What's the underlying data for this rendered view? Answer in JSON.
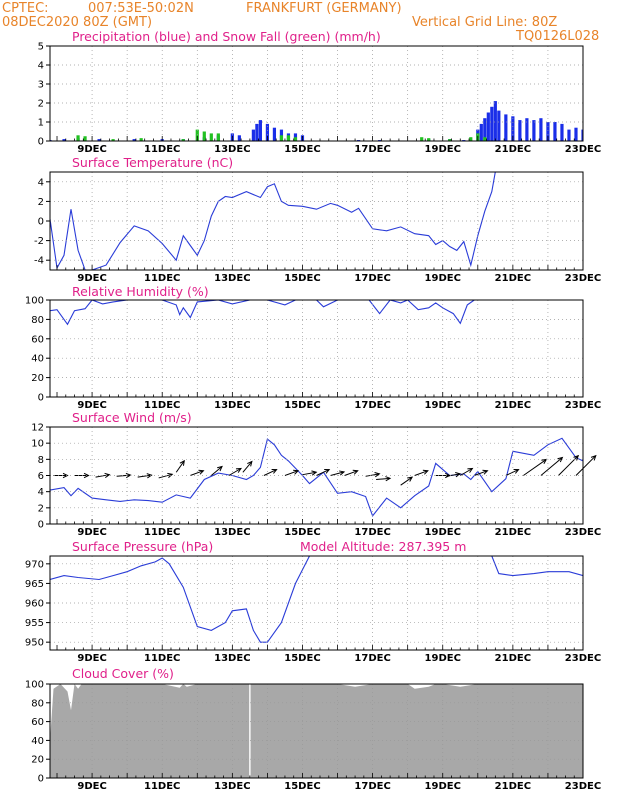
{
  "header": {
    "agency": "CPTEC:",
    "coords": "007:53E-50:02N",
    "location": "FRANKFURT (GERMANY)",
    "run": "08DEC2020 80Z (GMT)",
    "grid_note": "Vertical Grid Line: 80Z",
    "code": "TQ0126L028"
  },
  "colors": {
    "header": "#e8842a",
    "title": "#e0208a",
    "line": "#2a3cd8",
    "precip": "#1a2ee8",
    "snow": "#22c022",
    "cloud": "#a8a8a8",
    "grid": "#999999"
  },
  "x_ticks": [
    "9DEC",
    "11DEC",
    "13DEC",
    "15DEC",
    "17DEC",
    "19DEC",
    "21DEC",
    "23DEC"
  ],
  "chart_data": [
    {
      "id": "precip",
      "type": "bar",
      "title": "Precipitation (blue) and Snow Fall (green) (mm/h)",
      "ylim": [
        0,
        5
      ],
      "yticks": [
        0,
        1,
        2,
        3,
        4,
        5
      ],
      "series": [
        {
          "name": "Precipitation",
          "color": "#1a2ee8",
          "points": [
            [
              7.8,
              0.05
            ],
            [
              8.2,
              0.1
            ],
            [
              8.6,
              0.15
            ],
            [
              9.2,
              0.1
            ],
            [
              10.2,
              0.1
            ],
            [
              11.0,
              0.1
            ],
            [
              11.6,
              0.1
            ],
            [
              12.2,
              0.2
            ],
            [
              12.6,
              0.3
            ],
            [
              13.0,
              0.4
            ],
            [
              13.2,
              0.3
            ],
            [
              13.6,
              0.6
            ],
            [
              13.7,
              0.9
            ],
            [
              13.8,
              1.1
            ],
            [
              14.0,
              0.9
            ],
            [
              14.2,
              0.7
            ],
            [
              14.4,
              0.6
            ],
            [
              14.6,
              0.4
            ],
            [
              14.8,
              0.4
            ],
            [
              15.0,
              0.3
            ],
            [
              16.6,
              0.05
            ],
            [
              17.2,
              0.05
            ],
            [
              18.6,
              0.1
            ],
            [
              19.2,
              0.1
            ],
            [
              19.6,
              0.05
            ],
            [
              20.0,
              0.6
            ],
            [
              20.1,
              0.9
            ],
            [
              20.2,
              1.2
            ],
            [
              20.3,
              1.5
            ],
            [
              20.4,
              1.8
            ],
            [
              20.5,
              2.1
            ],
            [
              20.6,
              1.6
            ],
            [
              20.8,
              1.4
            ],
            [
              21.0,
              1.3
            ],
            [
              21.2,
              1.1
            ],
            [
              21.4,
              1.2
            ],
            [
              21.6,
              1.1
            ],
            [
              21.8,
              1.2
            ],
            [
              22.0,
              1.0
            ],
            [
              22.2,
              1.0
            ],
            [
              22.4,
              0.9
            ],
            [
              22.6,
              0.6
            ],
            [
              22.8,
              0.7
            ],
            [
              23.0,
              0.6
            ]
          ]
        },
        {
          "name": "Snow Fall",
          "color": "#22c022",
          "points": [
            [
              8.6,
              0.3
            ],
            [
              8.8,
              0.25
            ],
            [
              9.6,
              0.1
            ],
            [
              10.4,
              0.15
            ],
            [
              11.6,
              0.1
            ],
            [
              12.0,
              0.6
            ],
            [
              12.2,
              0.5
            ],
            [
              12.4,
              0.4
            ],
            [
              12.6,
              0.4
            ],
            [
              14.4,
              0.3
            ],
            [
              14.6,
              0.3
            ],
            [
              14.8,
              0.2
            ],
            [
              18.4,
              0.2
            ],
            [
              18.6,
              0.15
            ],
            [
              19.2,
              0.1
            ],
            [
              19.8,
              0.2
            ],
            [
              20.0,
              0.4
            ],
            [
              20.2,
              0.2
            ]
          ]
        }
      ]
    },
    {
      "id": "temp",
      "type": "line",
      "title": "Surface Temperature (nC)",
      "ylim": [
        -5,
        5
      ],
      "yticks": [
        -4,
        -2,
        0,
        2,
        4
      ],
      "x": [
        7.8,
        8.0,
        8.2,
        8.4,
        8.6,
        8.8,
        9.0,
        9.4,
        9.8,
        10.2,
        10.6,
        11.0,
        11.4,
        11.6,
        11.8,
        12.0,
        12.2,
        12.4,
        12.6,
        12.8,
        13.0,
        13.4,
        13.8,
        14.0,
        14.2,
        14.4,
        14.6,
        15.0,
        15.4,
        15.8,
        16.0,
        16.4,
        16.6,
        17.0,
        17.4,
        17.8,
        18.2,
        18.6,
        18.8,
        19.0,
        19.2,
        19.4,
        19.6,
        19.8,
        20.0,
        20.2,
        20.4,
        20.5
      ],
      "values": [
        0.2,
        -4.8,
        -3.5,
        1.2,
        -3.0,
        -5.0,
        -5.0,
        -4.5,
        -2.2,
        -0.5,
        -1.0,
        -2.3,
        -4.0,
        -1.5,
        -2.5,
        -3.5,
        -2.0,
        0.5,
        2.0,
        2.5,
        2.4,
        3.0,
        2.4,
        3.5,
        3.8,
        2.0,
        1.6,
        1.5,
        1.2,
        1.8,
        1.6,
        0.9,
        1.3,
        -0.8,
        -1.0,
        -0.6,
        -1.3,
        -1.5,
        -2.4,
        -2.0,
        -2.6,
        -3.0,
        -2.1,
        -4.5,
        -1.5,
        1.0,
        3.0,
        5.0
      ]
    },
    {
      "id": "rh",
      "type": "line",
      "title": "Relative Humidity (%)",
      "ylim": [
        0,
        100
      ],
      "yticks": [
        0,
        20,
        40,
        60,
        80,
        100
      ],
      "x": [
        7.8,
        8.0,
        8.3,
        8.5,
        8.8,
        9.0,
        9.3,
        9.6,
        10.0,
        10.6,
        11.0,
        11.4,
        11.5,
        11.6,
        11.8,
        12.0,
        12.6,
        13.0,
        13.5,
        14.0,
        14.5,
        14.8,
        15.0,
        15.4,
        15.6,
        16.0,
        16.5,
        16.9,
        17.2,
        17.5,
        17.8,
        18.0,
        18.3,
        18.6,
        18.8,
        19.0,
        19.3,
        19.5,
        19.7,
        19.9,
        20.2,
        20.6,
        21.0,
        22.0,
        23.0
      ],
      "values": [
        89,
        90,
        75,
        89,
        91,
        100,
        96,
        98,
        100,
        100,
        100,
        95,
        85,
        92,
        82,
        98,
        100,
        96,
        100,
        100,
        95,
        100,
        100,
        100,
        93,
        100,
        100,
        100,
        86,
        100,
        97,
        100,
        90,
        92,
        97,
        92,
        86,
        76,
        95,
        100,
        100,
        100,
        100,
        100,
        100
      ]
    },
    {
      "id": "wind",
      "type": "line",
      "title": "Surface Wind (m/s)",
      "ylim": [
        0,
        12
      ],
      "yticks": [
        0,
        2,
        4,
        6,
        8,
        10,
        12
      ],
      "x": [
        7.8,
        8.2,
        8.4,
        8.6,
        9.0,
        9.4,
        9.8,
        10.2,
        10.6,
        11.0,
        11.4,
        11.8,
        12.2,
        12.6,
        13.0,
        13.4,
        13.6,
        13.8,
        14.0,
        14.2,
        14.4,
        14.6,
        15.0,
        15.2,
        15.6,
        16.0,
        16.4,
        16.8,
        17.0,
        17.4,
        17.8,
        18.2,
        18.6,
        18.8,
        19.2,
        19.6,
        19.8,
        20.0,
        20.4,
        20.8,
        21.0,
        21.6,
        22.0,
        22.4,
        22.8,
        23.0
      ],
      "values": [
        4.2,
        4.5,
        3.5,
        4.4,
        3.2,
        3.0,
        2.8,
        3.0,
        2.9,
        2.7,
        3.6,
        3.2,
        5.5,
        6.3,
        6.0,
        5.5,
        6.0,
        7.0,
        10.5,
        9.8,
        8.5,
        7.8,
        6.0,
        5.0,
        6.4,
        3.8,
        4.0,
        3.4,
        1.0,
        3.2,
        2.0,
        3.5,
        4.7,
        7.5,
        6.0,
        6.2,
        5.5,
        6.5,
        4.0,
        5.6,
        9.0,
        8.5,
        9.8,
        10.6,
        8.2,
        7.8
      ]
    },
    {
      "id": "pressure",
      "type": "line",
      "title": "Surface Pressure (hPa)",
      "subtitle": "Model Altitude: 287.395 m",
      "ylim": [
        948,
        972
      ],
      "yticks": [
        950,
        955,
        960,
        965,
        970
      ],
      "x": [
        7.8,
        8.2,
        8.6,
        9.2,
        9.6,
        10.0,
        10.4,
        10.8,
        11.0,
        11.2,
        11.6,
        12.0,
        12.4,
        12.8,
        13.0,
        13.4,
        13.6,
        13.8,
        14.0,
        14.4,
        14.8,
        15.2,
        20.4,
        20.6,
        21.0,
        21.6,
        22.0,
        22.6,
        23.0
      ],
      "values": [
        966,
        967,
        966.5,
        966,
        967,
        968,
        969.5,
        970.5,
        971.5,
        970,
        964,
        954,
        953,
        955,
        958,
        958.5,
        953,
        950,
        950,
        955,
        965,
        972,
        972,
        967.5,
        967,
        967.5,
        968,
        968,
        967
      ]
    },
    {
      "id": "cloud",
      "type": "area",
      "title": "Cloud Cover (%)",
      "ylim": [
        0,
        100
      ],
      "yticks": [
        0,
        20,
        40,
        60,
        80,
        100
      ],
      "x": [
        7.8,
        7.9,
        8.1,
        8.3,
        8.4,
        8.5,
        8.6,
        8.7,
        8.8,
        9.5,
        10.5,
        11.0,
        11.5,
        11.6,
        11.7,
        12.0,
        13.0,
        13.5,
        14.5,
        15.0,
        16.0,
        16.5,
        17.0,
        17.5,
        18.0,
        18.2,
        18.4,
        18.6,
        18.8,
        19.0,
        19.5,
        20.0,
        21.0,
        22.0,
        23.0
      ],
      "values": [
        40,
        95,
        100,
        92,
        72,
        100,
        95,
        100,
        100,
        100,
        100,
        100,
        96,
        100,
        97,
        100,
        100,
        100,
        100,
        100,
        100,
        97,
        100,
        100,
        100,
        95,
        96,
        97,
        100,
        100,
        97,
        100,
        100,
        100,
        100
      ]
    }
  ]
}
